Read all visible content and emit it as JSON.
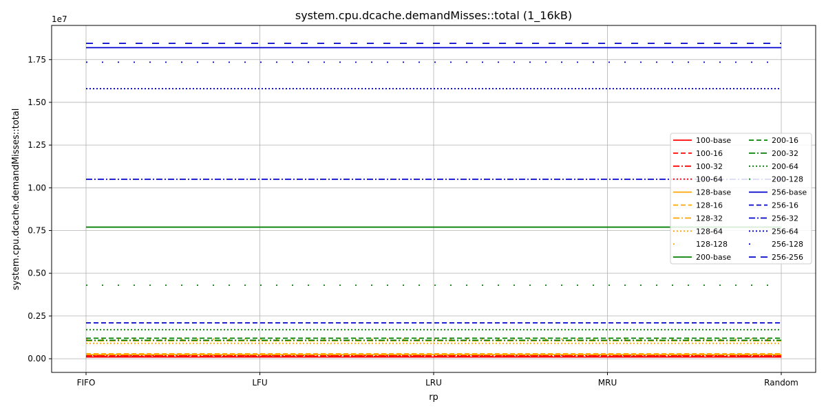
{
  "chart_data": {
    "type": "line",
    "title": "system.cpu.dcache.demandMisses::total (1_16kB)",
    "xlabel": "rp",
    "ylabel": "system.cpu.dcache.demandMisses::total",
    "y_offset_label": "1e7",
    "categories": [
      "FIFO",
      "LFU",
      "LRU",
      "MRU",
      "Random"
    ],
    "ylim": [
      -0.08,
      1.95
    ],
    "y_scale_factor": 10000000,
    "yticks": [
      0.0,
      0.25,
      0.5,
      0.75,
      1.0,
      1.25,
      1.5,
      1.75
    ],
    "ytick_labels": [
      "0.00",
      "0.25",
      "0.50",
      "0.75",
      "1.00",
      "1.25",
      "1.50",
      "1.75"
    ],
    "grid": true,
    "legend": {
      "position": "center-right",
      "columns": 2
    },
    "series": [
      {
        "name": "100-base",
        "color": "#ff0000",
        "dash": "solid",
        "value": 0.1
      },
      {
        "name": "100-16",
        "color": "#ff0000",
        "dash": "dashed",
        "value": 0.14
      },
      {
        "name": "100-32",
        "color": "#ff0000",
        "dash": "dashdot",
        "value": 0.17
      },
      {
        "name": "100-64",
        "color": "#ff0000",
        "dash": "dotted",
        "value": 0.2
      },
      {
        "name": "128-base",
        "color": "#ffa500",
        "dash": "solid",
        "value": 0.24
      },
      {
        "name": "128-16",
        "color": "#ffa500",
        "dash": "dashed",
        "value": 0.29
      },
      {
        "name": "128-32",
        "color": "#ffa500",
        "dash": "dashdot",
        "value": 1.05
      },
      {
        "name": "128-64",
        "color": "#ffa500",
        "dash": "dotted",
        "value": 0.9
      },
      {
        "name": "128-128",
        "color": "#ffa500",
        "dash": "loosedot",
        "value": 1.15
      },
      {
        "name": "200-base",
        "color": "#008000",
        "dash": "solid",
        "value": 7.7
      },
      {
        "name": "200-16",
        "color": "#008000",
        "dash": "dashed",
        "value": 1.2
      },
      {
        "name": "200-32",
        "color": "#008000",
        "dash": "dashdot",
        "value": 1.08
      },
      {
        "name": "200-64",
        "color": "#008000",
        "dash": "dotted",
        "value": 1.7
      },
      {
        "name": "200-128",
        "color": "#008000",
        "dash": "loosedot",
        "value": 4.3
      },
      {
        "name": "256-base",
        "color": "#0000cc",
        "dash": "solid",
        "value": 18.2
      },
      {
        "name": "256-16",
        "color": "#0000cc",
        "dash": "dashed",
        "value": 2.1
      },
      {
        "name": "256-32",
        "color": "#0000cc",
        "dash": "dashdot",
        "value": 10.5
      },
      {
        "name": "256-64",
        "color": "#0000cc",
        "dash": "dotted",
        "value": 15.8
      },
      {
        "name": "256-128",
        "color": "#0000cc",
        "dash": "loosedot",
        "value": 17.35
      },
      {
        "name": "256-256",
        "color": "#0000cc",
        "dash": "longdash",
        "value": 18.45
      }
    ],
    "series_values_unit": "millions (value × 1e6)"
  }
}
